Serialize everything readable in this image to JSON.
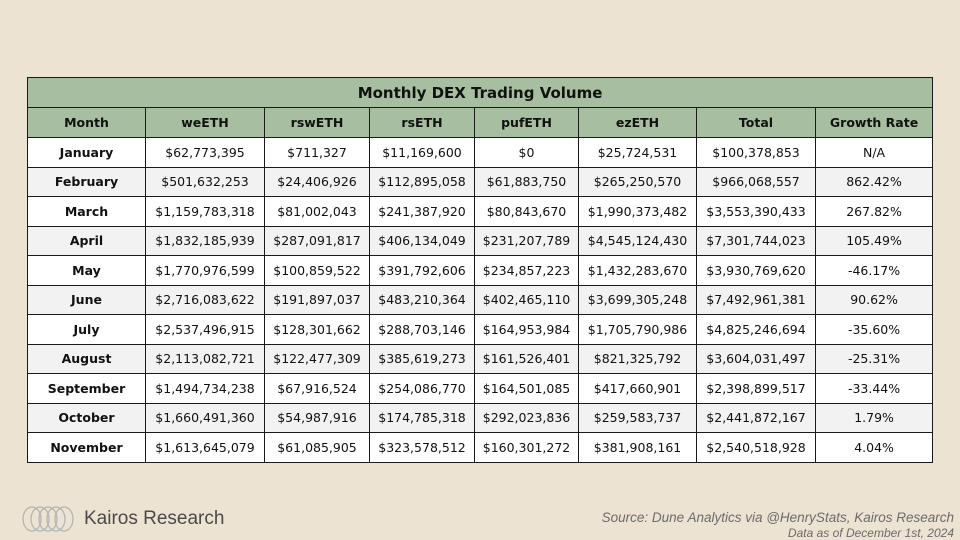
{
  "table": {
    "title": "Monthly DEX Trading Volume",
    "columns": [
      "Month",
      "weETH",
      "rswETH",
      "rsETH",
      "pufETH",
      "ezETH",
      "Total",
      "Growth Rate"
    ],
    "rows": [
      [
        "January",
        "$62,773,395",
        "$711,327",
        "$11,169,600",
        "$0",
        "$25,724,531",
        "$100,378,853",
        "N/A"
      ],
      [
        "February",
        "$501,632,253",
        "$24,406,926",
        "$112,895,058",
        "$61,883,750",
        "$265,250,570",
        "$966,068,557",
        "862.42%"
      ],
      [
        "March",
        "$1,159,783,318",
        "$81,002,043",
        "$241,387,920",
        "$80,843,670",
        "$1,990,373,482",
        "$3,553,390,433",
        "267.82%"
      ],
      [
        "April",
        "$1,832,185,939",
        "$287,091,817",
        "$406,134,049",
        "$231,207,789",
        "$4,545,124,430",
        "$7,301,744,023",
        "105.49%"
      ],
      [
        "May",
        "$1,770,976,599",
        "$100,859,522",
        "$391,792,606",
        "$234,857,223",
        "$1,432,283,670",
        "$3,930,769,620",
        "-46.17%"
      ],
      [
        "June",
        "$2,716,083,622",
        "$191,897,037",
        "$483,210,364",
        "$402,465,110",
        "$3,699,305,248",
        "$7,492,961,381",
        "90.62%"
      ],
      [
        "July",
        "$2,537,496,915",
        "$128,301,662",
        "$288,703,146",
        "$164,953,984",
        "$1,705,790,986",
        "$4,825,246,694",
        "-35.60%"
      ],
      [
        "August",
        "$2,113,082,721",
        "$122,477,309",
        "$385,619,273",
        "$161,526,401",
        "$821,325,792",
        "$3,604,031,497",
        "-25.31%"
      ],
      [
        "September",
        "$1,494,734,238",
        "$67,916,524",
        "$254,086,770",
        "$164,501,085",
        "$417,660,901",
        "$2,398,899,517",
        "-33.44%"
      ],
      [
        "October",
        "$1,660,491,360",
        "$54,987,916",
        "$174,785,318",
        "$292,023,836",
        "$259,583,737",
        "$2,441,872,167",
        "1.79%"
      ],
      [
        "November",
        "$1,613,645,079",
        "$61,085,905",
        "$323,578,512",
        "$160,301,272",
        "$381,908,161",
        "$2,540,518,928",
        "4.04%"
      ]
    ]
  },
  "footer": {
    "brand": "Kairos Research",
    "source": "Source: Dune Analytics via @HenryStats, Kairos Research",
    "date_note": "Data as of December 1st, 2024"
  },
  "colors": {
    "header_bg": "#a7bfa0",
    "page_bg": "#ece3d2",
    "row_alt": "#f2f2f2"
  }
}
